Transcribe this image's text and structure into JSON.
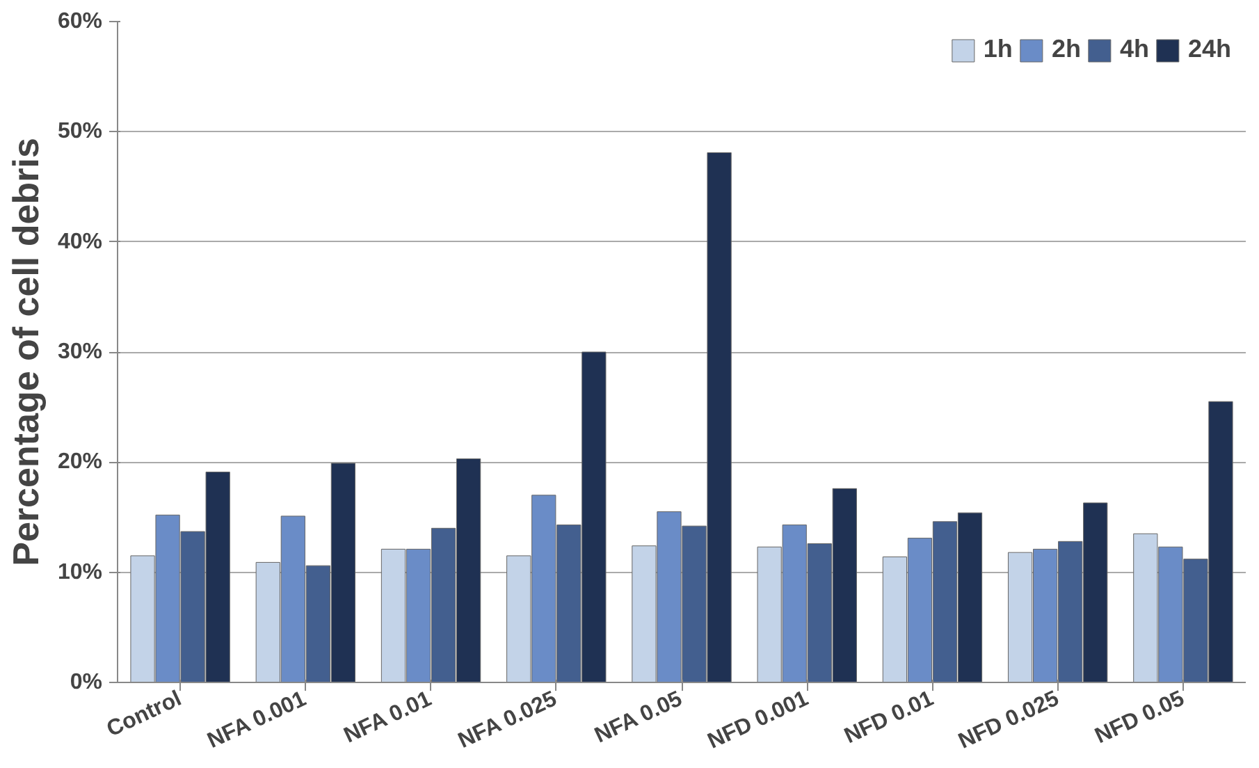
{
  "chart_data": {
    "type": "bar",
    "ylabel": "Percentage of cell debris",
    "categories": [
      "Control",
      "NFA 0.001",
      "NFA 0.01",
      "NFA 0.025",
      "NFA 0.05",
      "NFD 0.001",
      "NFD 0.01",
      "NFD 0.025",
      "NFD 0.05"
    ],
    "series": [
      {
        "name": "1h",
        "color": "#c3d3e8",
        "values": [
          11.5,
          10.9,
          12.1,
          11.5,
          12.4,
          12.3,
          11.4,
          11.8,
          13.5
        ]
      },
      {
        "name": "2h",
        "color": "#6a8cc7",
        "values": [
          15.2,
          15.1,
          12.1,
          17.0,
          15.5,
          14.3,
          13.1,
          12.1,
          12.3
        ]
      },
      {
        "name": "4h",
        "color": "#435f8f",
        "values": [
          13.7,
          10.6,
          14.0,
          14.3,
          14.2,
          12.6,
          14.6,
          12.8,
          11.2
        ]
      },
      {
        "name": "24h",
        "color": "#1f3153",
        "values": [
          19.1,
          19.9,
          20.3,
          30.0,
          48.1,
          17.6,
          15.4,
          16.3,
          25.5
        ]
      }
    ],
    "ylim": [
      0,
      60
    ],
    "yticks": [
      {
        "value": 0,
        "label": "0%"
      },
      {
        "value": 10,
        "label": "10%"
      },
      {
        "value": 20,
        "label": "20%"
      },
      {
        "value": 30,
        "label": "30%"
      },
      {
        "value": 40,
        "label": "40%"
      },
      {
        "value": 50,
        "label": "50%"
      },
      {
        "value": 60,
        "label": "60%"
      }
    ],
    "grid": "y",
    "legend": "top right"
  }
}
